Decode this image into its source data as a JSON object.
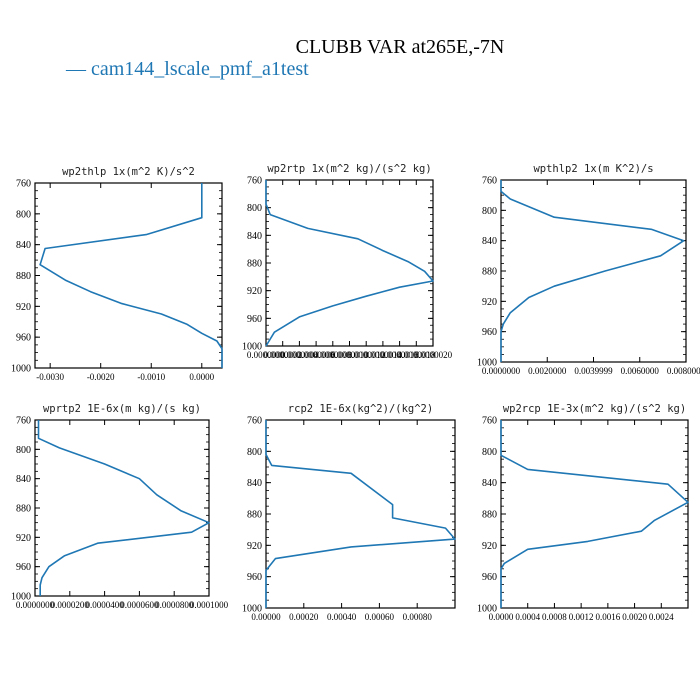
{
  "figure": {
    "title": "CLUBB VAR at265E,-7N",
    "legend_prefix": "— ",
    "legend_label": "cam144_lscale_pmf_a1test",
    "line_color": "#1f77b4"
  },
  "chart_data": [
    {
      "type": "line",
      "title": "wp2thlp  1x(m^2 K)/s^2",
      "xlim": [
        -0.0033,
        0.0004
      ],
      "ylim": [
        760,
        1000
      ],
      "xticks": [
        -0.003,
        -0.002,
        -0.001,
        0.0
      ],
      "xtick_labels": [
        "-0.0030",
        "-0.0020",
        "-0.0010",
        "0.0000"
      ],
      "yticks": [
        760,
        800,
        840,
        880,
        920,
        960,
        1000
      ],
      "series": [
        {
          "x": [
            0.0,
            0.0,
            0.0,
            -0.0011,
            -0.0031,
            -0.0032,
            -0.0027,
            -0.0022,
            -0.0016,
            -0.0008,
            -0.0003,
            0.0,
            0.0003,
            0.0004,
            0.0004
          ],
          "y": [
            760,
            780,
            805,
            827,
            845,
            866,
            886,
            901,
            916,
            930,
            943,
            955,
            965,
            975,
            1000
          ]
        }
      ]
    },
    {
      "type": "line",
      "title": "wp2rtp  1x(m^2 kg)/(s^2 kg)",
      "xlim": [
        0,
        2e-06
      ],
      "ylim": [
        760,
        1000
      ],
      "xticks": [
        0,
        2e-07,
        4e-07,
        6e-07,
        8e-07,
        1e-06,
        1.2e-06,
        1.4e-06,
        1.6e-06,
        1.8e-06,
        2e-06
      ],
      "xtick_labels": [
        "0.0000000",
        "0.0000002",
        "0.0000004",
        "0.0000006",
        "0.0000008",
        "0.0000010",
        "0.0000012",
        "0.0000014",
        "0.0000016",
        "0.0000018",
        "0.0000020"
      ],
      "yticks": [
        760,
        800,
        840,
        880,
        920,
        960,
        1000
      ],
      "series": [
        {
          "x": [
            0,
            0,
            5e-08,
            5e-07,
            1.1e-06,
            1.4e-06,
            1.7e-06,
            1.9e-06,
            2e-06,
            1.6e-06,
            1.2e-06,
            8e-07,
            4e-07,
            1e-07,
            0
          ],
          "y": [
            760,
            795,
            810,
            830,
            845,
            862,
            878,
            892,
            906,
            915,
            928,
            942,
            958,
            980,
            1000
          ]
        }
      ]
    },
    {
      "type": "line",
      "title": "wpthlp2  1x(m K^2)/s",
      "xlim": [
        0,
        0.008
      ],
      "ylim": [
        760,
        1000
      ],
      "xticks": [
        0,
        0.002,
        0.004,
        0.006,
        0.008
      ],
      "xtick_labels": [
        "0.0000000",
        "0.0020000",
        "0.0039999",
        "0.0060000",
        "0.0080000"
      ],
      "yticks": [
        760,
        800,
        840,
        880,
        920,
        960,
        1000
      ],
      "series": [
        {
          "x": [
            0,
            0,
            0.0004,
            0.0023,
            0.0065,
            0.0079,
            0.0069,
            0.0045,
            0.0023,
            0.0012,
            0.0004,
            0.0001,
            0,
            0,
            0
          ],
          "y": [
            760,
            775,
            785,
            809,
            825,
            840,
            860,
            880,
            900,
            915,
            935,
            950,
            960,
            975,
            1000
          ]
        }
      ]
    },
    {
      "type": "line",
      "title": "wprtp2  1E-6x(m kg)/(s kg)",
      "xlim": [
        0,
        0.0001
      ],
      "ylim": [
        760,
        1000
      ],
      "xticks": [
        0,
        2e-05,
        4e-05,
        6e-05,
        8e-05,
        0.0001
      ],
      "xtick_labels": [
        "0.0000000",
        "0.0000200",
        "0.0000400",
        "0.0000600",
        "0.0000800",
        "0.0001000"
      ],
      "yticks": [
        760,
        800,
        840,
        880,
        920,
        960,
        1000
      ],
      "series": [
        {
          "x": [
            2e-06,
            2e-06,
            1.4e-05,
            4e-05,
            6e-05,
            7e-05,
            8.4e-05,
            0.0001,
            9e-05,
            3.6e-05,
            1.7e-05,
            8e-06,
            4e-06,
            3e-06,
            3e-06
          ],
          "y": [
            760,
            785,
            798,
            820,
            840,
            862,
            884,
            900,
            913,
            928,
            945,
            960,
            975,
            985,
            1000
          ]
        }
      ]
    },
    {
      "type": "line",
      "title": "rcp2  1E-6x(kg^2)/(kg^2)",
      "xlim": [
        0,
        0.001
      ],
      "ylim": [
        760,
        1000
      ],
      "xticks": [
        0,
        0.0002,
        0.0004,
        0.0006,
        0.0008
      ],
      "xtick_labels": [
        "0.00000",
        "0.00020",
        "0.00040",
        "0.00060",
        "0.00080"
      ],
      "yticks": [
        760,
        800,
        840,
        880,
        920,
        960,
        1000
      ],
      "series": [
        {
          "x": [
            0,
            0,
            3e-05,
            0.00045,
            0.00067,
            0.00067,
            0.00095,
            0.001,
            0.00045,
            5e-05,
            0,
            0,
            0
          ],
          "y": [
            760,
            804,
            818,
            828,
            868,
            885,
            898,
            912,
            922,
            937,
            952,
            975,
            1000
          ]
        }
      ]
    },
    {
      "type": "line",
      "title": "wp2rcp  1E-3x(m^2 kg)/(s^2 kg)",
      "xlim": [
        0,
        0.0028
      ],
      "ylim": [
        760,
        1000
      ],
      "xticks": [
        0,
        0.0004,
        0.0008,
        0.0012,
        0.0016,
        0.002,
        0.0024
      ],
      "xtick_labels": [
        "0.0000",
        "0.0004",
        "0.0008",
        "0.0012",
        "0.0016",
        "0.0020",
        "0.0024"
      ],
      "yticks": [
        760,
        800,
        840,
        880,
        920,
        960,
        1000
      ],
      "series": [
        {
          "x": [
            0,
            0,
            0.0004,
            0.0025,
            0.0028,
            0.0023,
            0.0021,
            0.0013,
            0.0004,
            5e-05,
            0,
            0,
            0
          ],
          "y": [
            760,
            805,
            823,
            842,
            865,
            888,
            902,
            915,
            925,
            943,
            950,
            975,
            1000
          ]
        }
      ]
    }
  ]
}
